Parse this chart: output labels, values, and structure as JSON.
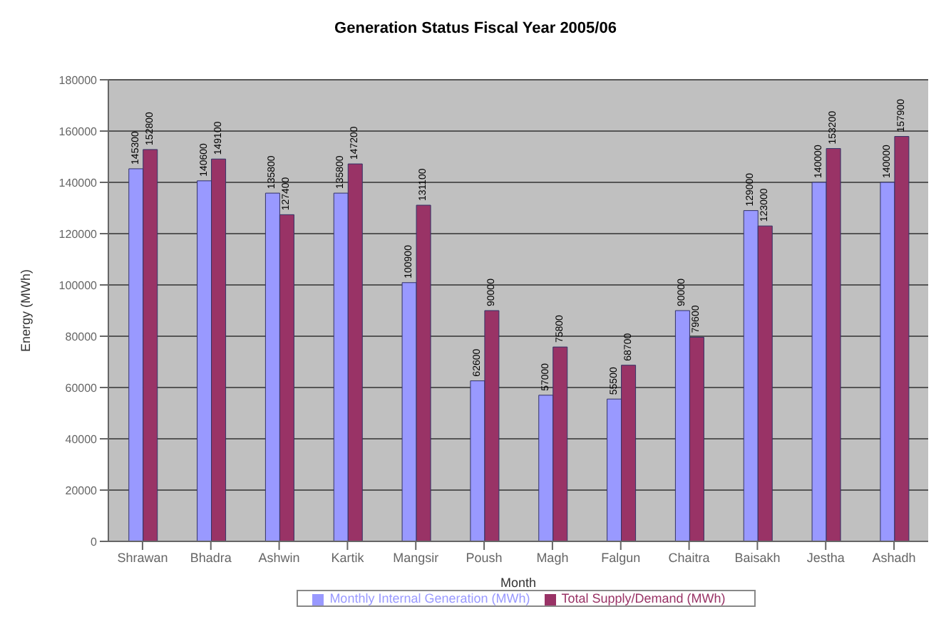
{
  "chart_data": {
    "type": "bar",
    "title": "Generation Status Fiscal Year 2005/06",
    "xlabel": "Month",
    "ylabel": "Energy (MWh)",
    "categories": [
      "Shrawan",
      "Bhadra",
      "Ashwin",
      "Kartik",
      "Mangsir",
      "Poush",
      "Magh",
      "Falgun",
      "Chaitra",
      "Baisakh",
      "Jestha",
      "Ashadh"
    ],
    "series": [
      {
        "name": "Monthly Internal Generation (MWh)",
        "color": "#9999ff",
        "values": [
          145300,
          140600,
          135800,
          135800,
          100900,
          62600,
          57000,
          55500,
          90000,
          129000,
          140000,
          140000
        ]
      },
      {
        "name": "Total Supply/Demand (MWh)",
        "color": "#993366",
        "values": [
          152800,
          149100,
          127400,
          147200,
          131100,
          90000,
          75800,
          68700,
          79600,
          123000,
          153200,
          157900
        ]
      }
    ],
    "ylim": [
      0,
      180000
    ],
    "yticks": [
      0,
      20000,
      40000,
      60000,
      80000,
      100000,
      120000,
      140000,
      160000,
      180000
    ],
    "grid": "y",
    "legend": "bottom",
    "data_labels": true
  }
}
